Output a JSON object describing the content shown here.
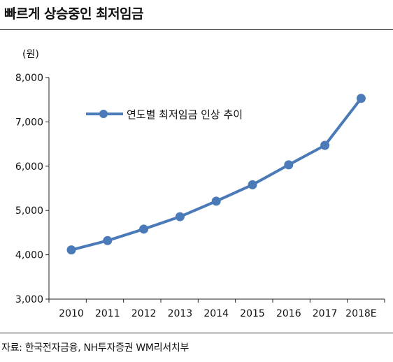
{
  "title": "빠르게 상승중인 최저임금",
  "source": "자료: 한국전자금융, NH투자증권 WM리서치부",
  "colors": {
    "series": "#4A7AB8",
    "axis": "#222222"
  },
  "chart_data": {
    "type": "line",
    "title": "빠르게 상승중인 최저임금",
    "unit_label": "(원)",
    "ylim": [
      3000,
      8000
    ],
    "y_ticks": [
      3000,
      4000,
      5000,
      6000,
      7000,
      8000
    ],
    "y_tick_labels": [
      "3,000",
      "4,000",
      "5,000",
      "6,000",
      "7,000",
      "8,000"
    ],
    "categories": [
      "2010",
      "2011",
      "2012",
      "2013",
      "2014",
      "2015",
      "2016",
      "2017",
      "2018E"
    ],
    "series": [
      {
        "name": "연도별 최저임금 인상 추이",
        "values": [
          4110,
          4320,
          4580,
          4860,
          5210,
          5580,
          6030,
          6470,
          7530
        ]
      }
    ],
    "grid": false,
    "legend_position": "top-left"
  }
}
